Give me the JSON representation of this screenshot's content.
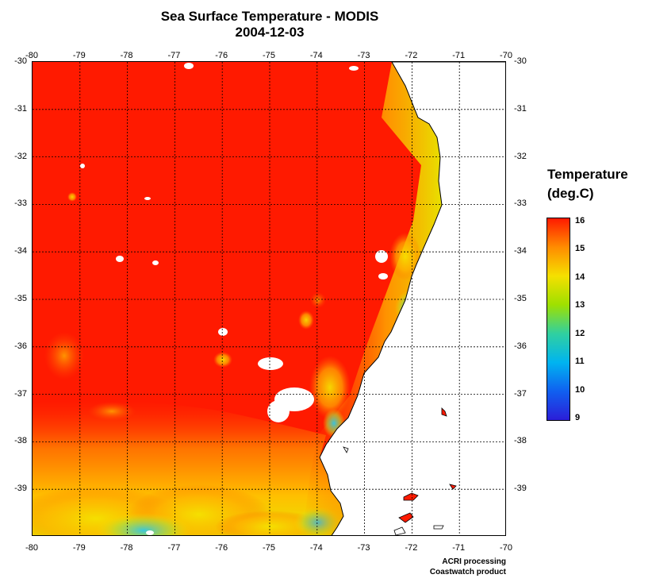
{
  "title": "Sea Surface Temperature - MODIS",
  "date": "2004-12-03",
  "axes": {
    "lon_ticks": [
      "-80",
      "-79",
      "-78",
      "-77",
      "-76",
      "-75",
      "-74",
      "-73",
      "-72",
      "-71",
      "-70"
    ],
    "lat_ticks": [
      "-30",
      "-31",
      "-32",
      "-33",
      "-34",
      "-35",
      "-36",
      "-37",
      "-38",
      "-39"
    ],
    "lon_range": [
      -80,
      -70
    ],
    "lat_range": [
      -40,
      -30
    ],
    "grid": "dotted"
  },
  "legend": {
    "title_line1": "Temperature",
    "title_line2": "(deg.C)",
    "labels": [
      "16",
      "15",
      "14",
      "13",
      "12",
      "11",
      "10",
      "9"
    ],
    "range": [
      9,
      16
    ],
    "colors": [
      "#ff1a00",
      "#ff8c00",
      "#f5e000",
      "#9ee000",
      "#30d0a0",
      "#00b4f0",
      "#1060f0",
      "#2b1ed8"
    ]
  },
  "credit": {
    "line1": "ACRI processing",
    "line2": "Coastwatch product"
  },
  "colors": {
    "sea_warm": "#ff1a00",
    "land": "#ffffff"
  }
}
